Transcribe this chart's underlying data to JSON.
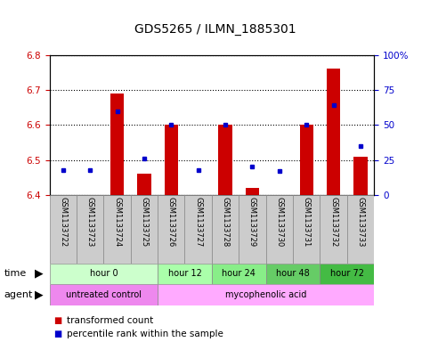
{
  "title": "GDS5265 / ILMN_1885301",
  "samples": [
    "GSM1133722",
    "GSM1133723",
    "GSM1133724",
    "GSM1133725",
    "GSM1133726",
    "GSM1133727",
    "GSM1133728",
    "GSM1133729",
    "GSM1133730",
    "GSM1133731",
    "GSM1133732",
    "GSM1133733"
  ],
  "transformed_count": [
    6.4,
    6.4,
    6.69,
    6.46,
    6.6,
    6.4,
    6.6,
    6.42,
    6.4,
    6.6,
    6.76,
    6.51
  ],
  "bar_base": 6.4,
  "percentile_rank": [
    18,
    18,
    60,
    26,
    50,
    18,
    50,
    20,
    17,
    50,
    64,
    35
  ],
  "ylim_left": [
    6.4,
    6.8
  ],
  "ylim_right": [
    0,
    100
  ],
  "yticks_left": [
    6.4,
    6.5,
    6.6,
    6.7,
    6.8
  ],
  "yticks_right": [
    0,
    25,
    50,
    75,
    100
  ],
  "yticklabels_right": [
    "0",
    "25",
    "50",
    "75",
    "100%"
  ],
  "bar_color": "#cc0000",
  "dot_color": "#0000cc",
  "time_groups": [
    {
      "label": "hour 0",
      "start": 0,
      "end": 4,
      "color": "#ccffcc"
    },
    {
      "label": "hour 12",
      "start": 4,
      "end": 6,
      "color": "#aaffaa"
    },
    {
      "label": "hour 24",
      "start": 6,
      "end": 8,
      "color": "#88ee88"
    },
    {
      "label": "hour 48",
      "start": 8,
      "end": 10,
      "color": "#66cc66"
    },
    {
      "label": "hour 72",
      "start": 10,
      "end": 12,
      "color": "#44bb44"
    }
  ],
  "agent_groups": [
    {
      "label": "untreated control",
      "start": 0,
      "end": 4,
      "color": "#ee88ee"
    },
    {
      "label": "mycophenolic acid",
      "start": 4,
      "end": 12,
      "color": "#ffaaff"
    }
  ],
  "legend_items": [
    {
      "label": "transformed count",
      "color": "#cc0000"
    },
    {
      "label": "percentile rank within the sample",
      "color": "#0000cc"
    }
  ],
  "time_label": "time",
  "agent_label": "agent",
  "title_fontsize": 10,
  "tick_fontsize": 7.5,
  "row_fontsize": 8,
  "legend_fontsize": 7.5
}
